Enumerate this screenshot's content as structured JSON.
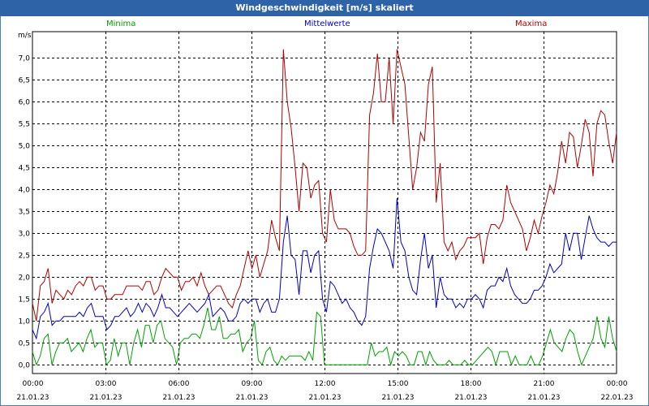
{
  "window": {
    "title": "Windgeschwindigkeit [m/s] skaliert"
  },
  "legend": [
    {
      "name": "Minima",
      "color": "#00a000"
    },
    {
      "name": "Mittelwerte",
      "color": "#0000c0"
    },
    {
      "name": "Maxima",
      "color": "#b00000"
    }
  ],
  "chart_data": {
    "type": "line",
    "title": "Windgeschwindigkeit [m/s] skaliert",
    "ylabel": "m/s",
    "ylim": [
      -0.2,
      7.6
    ],
    "y_ticks": [
      "0,0",
      "0,5",
      "1,0",
      "1,5",
      "2,0",
      "2,5",
      "3,0",
      "3,5",
      "4,0",
      "4,5",
      "5,0",
      "5,5",
      "6,0",
      "6,5",
      "7,0"
    ],
    "y_tick_values": [
      0,
      0.5,
      1,
      1.5,
      2,
      2.5,
      3,
      3.5,
      4,
      4.5,
      5,
      5.5,
      6,
      6.5,
      7
    ],
    "xlim_hours": [
      0,
      24
    ],
    "x_ticks": [
      {
        "time": "00:00",
        "date": "21.01.23"
      },
      {
        "time": "03:00",
        "date": "21.01.23"
      },
      {
        "time": "06:00",
        "date": "21.01.23"
      },
      {
        "time": "09:00",
        "date": "21.01.23"
      },
      {
        "time": "12:00",
        "date": "21.01.23"
      },
      {
        "time": "15:00",
        "date": "21.01.23"
      },
      {
        "time": "18:00",
        "date": "21.01.23"
      },
      {
        "time": "21:00",
        "date": "21.01.23"
      },
      {
        "time": "00:00",
        "date": "22.01.23"
      }
    ],
    "series": [
      {
        "name": "Maxima",
        "color": "#b00000",
        "values": [
          1.4,
          1.0,
          1.8,
          1.9,
          2.2,
          1.4,
          1.7,
          1.6,
          1.5,
          1.7,
          1.6,
          1.8,
          1.9,
          1.8,
          2.0,
          2.0,
          1.7,
          1.8,
          1.8,
          1.5,
          1.5,
          1.6,
          1.6,
          1.6,
          1.8,
          1.8,
          1.8,
          1.8,
          1.7,
          1.9,
          1.9,
          1.6,
          1.7,
          2.0,
          2.2,
          2.1,
          2.0,
          2.0,
          1.7,
          1.9,
          1.9,
          2.0,
          1.8,
          2.1,
          1.8,
          1.6,
          1.7,
          1.8,
          1.8,
          1.6,
          1.4,
          1.3,
          1.6,
          1.8,
          2.2,
          2.6,
          2.2,
          2.5,
          2.0,
          2.3,
          2.6,
          3.3,
          2.9,
          2.6,
          7.2,
          6.0,
          5.4,
          4.5,
          3.5,
          4.6,
          4.5,
          3.8,
          4.1,
          4.2,
          3.0,
          2.8,
          4.0,
          3.3,
          3.1,
          3.1,
          3.1,
          3.0,
          2.7,
          2.5,
          2.5,
          2.6,
          5.7,
          6.2,
          7.1,
          6.0,
          6.0,
          7.0,
          5.5,
          7.2,
          6.8,
          6.4,
          5.2,
          4.0,
          4.5,
          5.3,
          5.1,
          6.4,
          6.8,
          3.7,
          4.6,
          2.8,
          2.6,
          2.8,
          2.4,
          2.6,
          2.7,
          2.9,
          2.9,
          2.9,
          3.0,
          2.3,
          2.9,
          3.2,
          3.2,
          3.1,
          3.3,
          4.1,
          3.7,
          3.5,
          3.3,
          3.1,
          2.6,
          2.9,
          3.3,
          3.0,
          3.4,
          3.7,
          4.1,
          3.9,
          4.4,
          5.1,
          4.6,
          5.3,
          5.2,
          4.5,
          5.0,
          5.6,
          5.3,
          4.3,
          5.5,
          5.8,
          5.7,
          5.1,
          4.6,
          5.3
        ]
      },
      {
        "name": "Mittelwerte",
        "color": "#0000c0",
        "values": [
          0.8,
          0.6,
          1.1,
          1.2,
          1.4,
          0.9,
          1.0,
          1.0,
          1.1,
          1.1,
          1.1,
          1.1,
          1.2,
          1.1,
          1.3,
          1.4,
          1.1,
          1.1,
          1.1,
          0.8,
          0.9,
          1.1,
          1.1,
          1.2,
          1.3,
          1.1,
          1.2,
          1.4,
          1.2,
          1.4,
          1.3,
          1.1,
          1.3,
          1.6,
          1.3,
          1.3,
          1.2,
          1.1,
          1.2,
          1.3,
          1.4,
          1.3,
          1.2,
          1.3,
          1.4,
          1.6,
          1.1,
          1.2,
          1.3,
          1.2,
          1.0,
          1.0,
          1.1,
          1.4,
          1.5,
          1.4,
          1.5,
          1.5,
          1.2,
          1.4,
          1.5,
          1.2,
          1.2,
          1.5,
          2.8,
          3.4,
          2.5,
          2.4,
          1.6,
          2.6,
          2.6,
          2.1,
          2.5,
          2.6,
          1.5,
          1.2,
          1.9,
          1.8,
          1.6,
          1.4,
          1.5,
          1.3,
          1.2,
          1.0,
          0.9,
          1.1,
          2.2,
          2.7,
          3.1,
          3.0,
          2.8,
          2.6,
          2.2,
          3.8,
          2.8,
          2.6,
          2.0,
          1.7,
          1.6,
          2.4,
          3.0,
          2.2,
          2.5,
          1.3,
          2.0,
          1.6,
          1.5,
          1.5,
          1.3,
          1.4,
          1.3,
          1.5,
          1.5,
          1.6,
          1.5,
          1.3,
          1.7,
          1.8,
          1.8,
          2.0,
          1.9,
          2.2,
          1.8,
          1.6,
          1.5,
          1.4,
          1.4,
          1.5,
          1.7,
          1.7,
          1.8,
          2.0,
          2.3,
          2.1,
          2.2,
          2.3,
          3.0,
          2.6,
          3.0,
          3.0,
          2.4,
          2.9,
          3.4,
          3.1,
          2.9,
          2.8,
          2.8,
          2.7,
          2.8,
          2.8
        ]
      },
      {
        "name": "Minima",
        "color": "#00a000",
        "values": [
          0.3,
          0.0,
          0.2,
          0.6,
          0.7,
          0.0,
          0.3,
          0.5,
          0.5,
          0.6,
          0.3,
          0.4,
          0.5,
          0.3,
          0.6,
          0.8,
          0.4,
          0.5,
          0.5,
          0.0,
          0.1,
          0.6,
          0.2,
          0.5,
          0.5,
          0.0,
          0.5,
          0.8,
          0.4,
          0.9,
          0.9,
          0.5,
          0.9,
          1.0,
          0.6,
          0.5,
          0.4,
          0.0,
          0.5,
          0.6,
          0.6,
          0.7,
          0.7,
          0.6,
          0.9,
          1.3,
          0.8,
          0.8,
          1.1,
          0.6,
          0.6,
          0.7,
          0.7,
          0.8,
          0.3,
          0.5,
          0.6,
          1.0,
          0.1,
          0.0,
          0.3,
          0.4,
          0.1,
          0.0,
          0.2,
          0.1,
          0.2,
          0.2,
          0.2,
          0.2,
          0.1,
          0.3,
          0.1,
          1.2,
          1.1,
          0.0,
          0.0,
          0.0,
          0.0,
          0.0,
          0.0,
          0.0,
          0.0,
          0.0,
          0.0,
          0.0,
          0.0,
          0.5,
          0.2,
          0.3,
          0.3,
          0.4,
          0.0,
          0.3,
          0.2,
          0.3,
          0.2,
          0.0,
          0.0,
          0.3,
          0.3,
          0.0,
          0.3,
          0.1,
          0.0,
          0.0,
          0.0,
          0.1,
          0.0,
          0.0,
          0.0,
          0.1,
          0.0,
          0.0,
          0.1,
          0.2,
          0.3,
          0.4,
          0.3,
          0.0,
          0.3,
          0.3,
          0.3,
          0.0,
          0.2,
          0.0,
          0.0,
          0.0,
          0.2,
          0.0,
          0.0,
          0.2,
          0.5,
          0.8,
          0.5,
          0.4,
          0.3,
          0.6,
          0.8,
          0.7,
          0.3,
          0.0,
          0.2,
          0.4,
          0.6,
          1.1,
          0.6,
          0.4,
          1.1,
          0.6,
          0.3
        ]
      }
    ]
  }
}
